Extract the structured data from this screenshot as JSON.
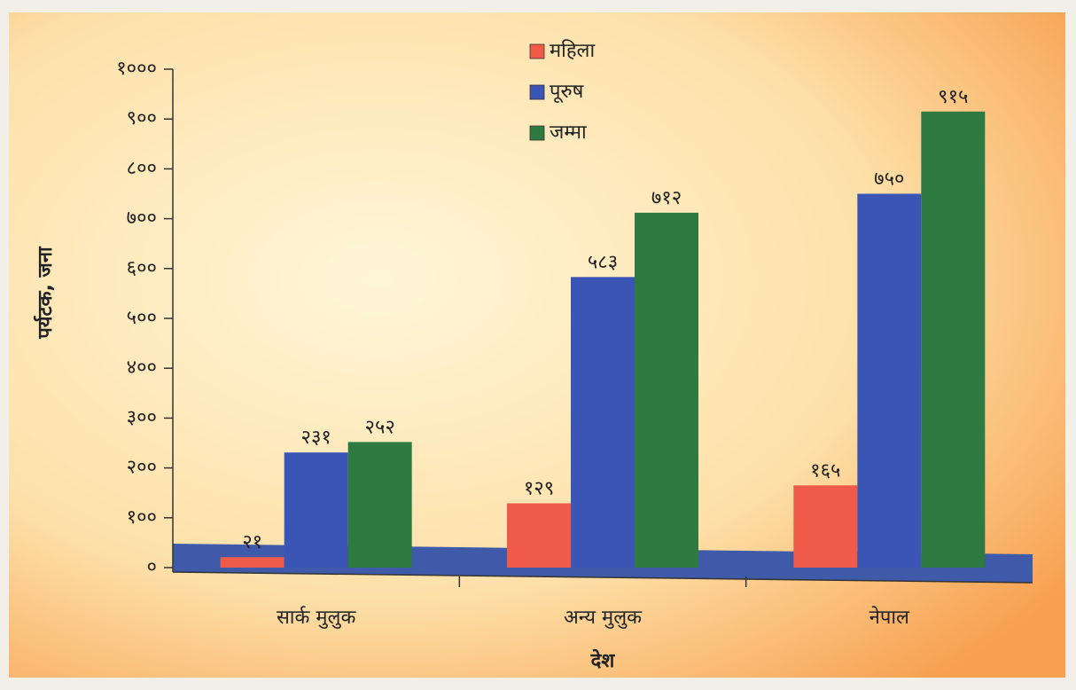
{
  "chart_data": {
    "type": "bar",
    "x_label": "देश",
    "y_label": "पर्यटक, जना",
    "categories": [
      "सार्क मुलुक",
      "अन्य मुलुक",
      "नेपाल"
    ],
    "series": [
      {
        "name": "महिला",
        "color": "#f05a48",
        "values": [
          21,
          129,
          165
        ],
        "value_labels": [
          "२१",
          "१२९",
          "१६५"
        ]
      },
      {
        "name": "पूरुष",
        "color": "#3b55b5",
        "values": [
          231,
          583,
          750
        ],
        "value_labels": [
          "२३१",
          "५८३",
          "७५०"
        ]
      },
      {
        "name": "जम्मा",
        "color": "#2f7a40",
        "values": [
          252,
          712,
          915
        ],
        "value_labels": [
          "२५२",
          "७१२",
          "९१५"
        ]
      }
    ],
    "ylim": [
      0,
      1000
    ],
    "yticks": [
      {
        "value": 0,
        "label": "०"
      },
      {
        "value": 100,
        "label": "१००"
      },
      {
        "value": 200,
        "label": "२००"
      },
      {
        "value": 300,
        "label": "३००"
      },
      {
        "value": 400,
        "label": "४००"
      },
      {
        "value": 500,
        "label": "५००"
      },
      {
        "value": 600,
        "label": "६००"
      },
      {
        "value": 700,
        "label": "७००"
      },
      {
        "value": 800,
        "label": "८००"
      },
      {
        "value": 900,
        "label": "९००"
      },
      {
        "value": 1000,
        "label": "१०००"
      }
    ],
    "legend": "top"
  }
}
